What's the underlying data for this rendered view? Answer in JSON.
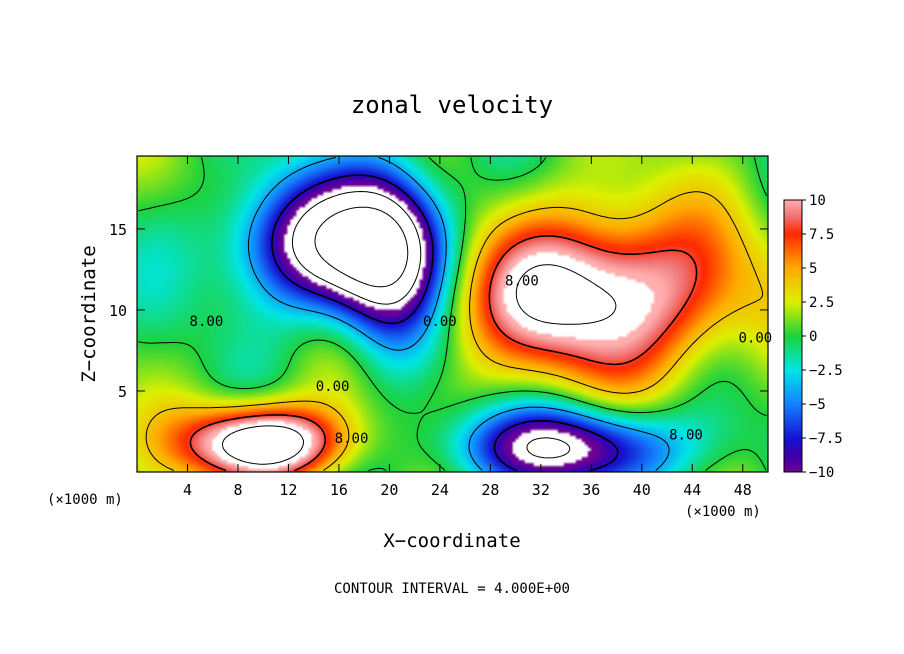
{
  "chart_data": {
    "type": "heatmap",
    "title": "zonal velocity",
    "xlabel": "X−coordinate",
    "ylabel": "Z−coordinate",
    "x_unit": "(×1000 m)",
    "x_unit_right": "(×1000 m)",
    "xlim": [
      0,
      50
    ],
    "ylim": [
      0,
      19.5
    ],
    "x_ticks": [
      4,
      8,
      12,
      16,
      20,
      24,
      28,
      32,
      36,
      40,
      44,
      48
    ],
    "y_ticks": [
      5,
      10,
      15
    ],
    "colorbar": {
      "range": [
        -10,
        10
      ],
      "ticks": [
        10,
        7.5,
        5,
        2.5,
        0,
        -2.5,
        -5,
        -7.5,
        -10
      ],
      "tick_labels": [
        "10",
        "7.5",
        "5",
        "2.5",
        "0",
        "−2.5",
        "−5",
        "−7.5",
        "−10"
      ]
    },
    "contour_labels": [
      {
        "text": "8.00",
        "x": 5.5,
        "y": 9.0
      },
      {
        "text": "0.00",
        "x": 15.5,
        "y": 5.0
      },
      {
        "text": "8.00",
        "x": 17.0,
        "y": 1.8
      },
      {
        "text": "0.00",
        "x": 24.0,
        "y": 9.0
      },
      {
        "text": "8.00",
        "x": 30.5,
        "y": 11.5
      },
      {
        "text": "0.00",
        "x": 49.0,
        "y": 8.0
      },
      {
        "text": "8.00",
        "x": 43.5,
        "y": 2.0
      }
    ],
    "features": [
      {
        "sign": -1,
        "x": 16,
        "y": 14,
        "sx": 8,
        "sy": 4,
        "peak": -15
      },
      {
        "sign": -1,
        "x": 20,
        "y": 13,
        "sx": 4,
        "sy": 6,
        "peak": -10
      },
      {
        "sign": 1,
        "x": 36,
        "y": 11,
        "sx": 11,
        "sy": 5,
        "peak": 13
      },
      {
        "sign": 1,
        "x": 10,
        "y": 1.8,
        "sx": 6,
        "sy": 2.3,
        "peak": 16
      },
      {
        "sign": -1,
        "x": 34,
        "y": 1.5,
        "sx": 9,
        "sy": 2.5,
        "peak": -12
      }
    ],
    "footer": "CONTOUR INTERVAL = 4.000E+00"
  }
}
